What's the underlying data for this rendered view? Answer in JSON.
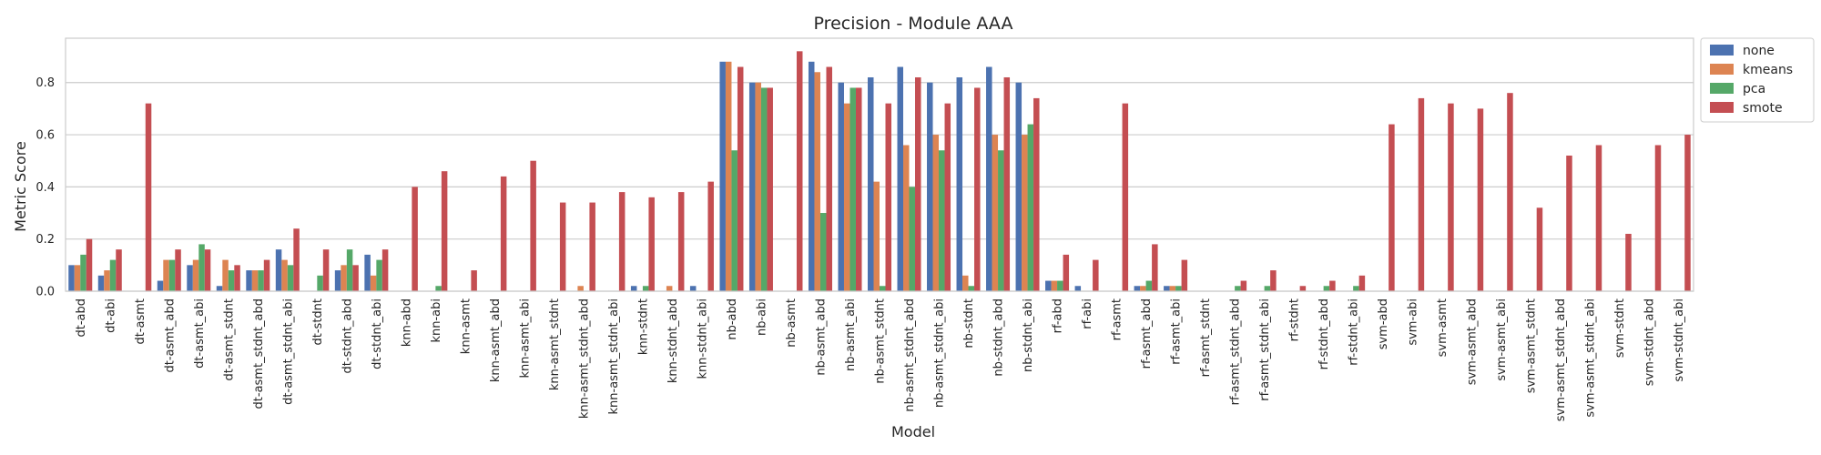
{
  "chart_data": {
    "type": "bar",
    "title": "Precision - Module AAA",
    "xlabel": "Model",
    "ylabel": "Metric Score",
    "ylim": [
      0,
      0.97
    ],
    "yticks": [
      "0.0",
      "0.2",
      "0.4",
      "0.6",
      "0.8"
    ],
    "grid": true,
    "legend_position": "outside-top-right",
    "categories": [
      "dt-abd",
      "dt-abi",
      "dt-asmt",
      "dt-asmt_abd",
      "dt-asmt_abi",
      "dt-asmt_stdnt",
      "dt-asmt_stdnt_abd",
      "dt-asmt_stdnt_abi",
      "dt-stdnt",
      "dt-stdnt_abd",
      "dt-stdnt_abi",
      "knn-abd",
      "knn-abi",
      "knn-asmt",
      "knn-asmt_abd",
      "knn-asmt_abi",
      "knn-asmt_stdnt",
      "knn-asmt_stdnt_abd",
      "knn-asmt_stdnt_abi",
      "knn-stdnt",
      "knn-stdnt_abd",
      "knn-stdnt_abi",
      "nb-abd",
      "nb-abi",
      "nb-asmt",
      "nb-asmt_abd",
      "nb-asmt_abi",
      "nb-asmt_stdnt",
      "nb-asmt_stdnt_abd",
      "nb-asmt_stdnt_abi",
      "nb-stdnt",
      "nb-stdnt_abd",
      "nb-stdnt_abi",
      "rf-abd",
      "rf-abi",
      "rf-asmt",
      "rf-asmt_abd",
      "rf-asmt_abi",
      "rf-asmt_stdnt",
      "rf-asmt_stdnt_abd",
      "rf-asmt_stdnt_abi",
      "rf-stdnt",
      "rf-stdnt_abd",
      "rf-stdnt_abi",
      "svm-abd",
      "svm-abi",
      "svm-asmt",
      "svm-asmt_abd",
      "svm-asmt_abi",
      "svm-asmt_stdnt",
      "svm-asmt_stdnt_abd",
      "svm-asmt_stdnt_abi",
      "svm-stdnt",
      "svm-stdnt_abd",
      "svm-stdnt_abi"
    ],
    "series": [
      {
        "name": "none",
        "color": "#4c72b0",
        "values": [
          0.1,
          0.06,
          0.0,
          0.04,
          0.1,
          0.02,
          0.08,
          0.16,
          0.0,
          0.08,
          0.14,
          0.0,
          0.0,
          0.0,
          0.0,
          0.0,
          0.0,
          0.0,
          0.0,
          0.02,
          0.0,
          0.02,
          0.88,
          0.8,
          0.0,
          0.88,
          0.8,
          0.82,
          0.86,
          0.8,
          0.82,
          0.86,
          0.8,
          0.04,
          0.02,
          0.0,
          0.02,
          0.02,
          0.0,
          0.0,
          0.0,
          0.0,
          0.0,
          0.0,
          0.0,
          0.0,
          0.0,
          0.0,
          0.0,
          0.0,
          0.0,
          0.0,
          0.0,
          0.0,
          0.0
        ]
      },
      {
        "name": "kmeans",
        "color": "#dd8452",
        "values": [
          0.1,
          0.08,
          0.0,
          0.12,
          0.12,
          0.12,
          0.08,
          0.12,
          0.0,
          0.1,
          0.06,
          0.0,
          0.0,
          0.0,
          0.0,
          0.0,
          0.0,
          0.02,
          0.0,
          0.0,
          0.02,
          0.0,
          0.88,
          0.8,
          0.0,
          0.84,
          0.72,
          0.42,
          0.56,
          0.6,
          0.06,
          0.6,
          0.6,
          0.04,
          0.0,
          0.0,
          0.02,
          0.02,
          0.0,
          0.0,
          0.0,
          0.0,
          0.0,
          0.0,
          0.0,
          0.0,
          0.0,
          0.0,
          0.0,
          0.0,
          0.0,
          0.0,
          0.0,
          0.0,
          0.0
        ]
      },
      {
        "name": "pca",
        "color": "#55a868",
        "values": [
          0.14,
          0.12,
          0.0,
          0.12,
          0.18,
          0.08,
          0.08,
          0.1,
          0.06,
          0.16,
          0.12,
          0.0,
          0.02,
          0.0,
          0.0,
          0.0,
          0.0,
          0.0,
          0.0,
          0.02,
          0.0,
          0.0,
          0.54,
          0.78,
          0.0,
          0.3,
          0.78,
          0.02,
          0.4,
          0.54,
          0.02,
          0.54,
          0.64,
          0.04,
          0.0,
          0.0,
          0.04,
          0.02,
          0.0,
          0.02,
          0.02,
          0.0,
          0.02,
          0.02,
          0.0,
          0.0,
          0.0,
          0.0,
          0.0,
          0.0,
          0.0,
          0.0,
          0.0,
          0.0,
          0.0
        ]
      },
      {
        "name": "smote",
        "color": "#c44e52",
        "values": [
          0.2,
          0.16,
          0.72,
          0.16,
          0.16,
          0.1,
          0.12,
          0.24,
          0.16,
          0.1,
          0.16,
          0.4,
          0.46,
          0.08,
          0.44,
          0.5,
          0.34,
          0.34,
          0.38,
          0.36,
          0.38,
          0.42,
          0.86,
          0.78,
          0.92,
          0.86,
          0.78,
          0.72,
          0.82,
          0.72,
          0.78,
          0.82,
          0.74,
          0.14,
          0.12,
          0.72,
          0.18,
          0.12,
          0.0,
          0.04,
          0.08,
          0.02,
          0.04,
          0.06,
          0.64,
          0.74,
          0.72,
          0.7,
          0.76,
          0.32,
          0.52,
          0.56,
          0.22,
          0.56,
          0.6
        ]
      }
    ]
  }
}
